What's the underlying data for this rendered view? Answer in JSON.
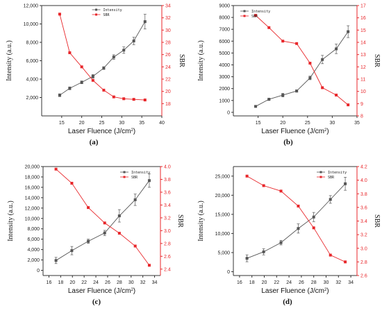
{
  "charts": [
    {
      "panel_label": "(a)",
      "chart_data": {
        "type": "line",
        "xlabel": "Laser Fluence (J/cm",
        "xlabel_sup": "2",
        "xlabel_close": ")",
        "ylabel_left": "Intensity (a.u.)",
        "ylabel_right": "SBR",
        "xlim": [
          10,
          40
        ],
        "xticks": [
          15,
          20,
          25,
          30,
          35,
          40
        ],
        "ylim_left": [
          0,
          12000
        ],
        "yticks_left": [
          2000,
          4000,
          6000,
          8000,
          10000,
          12000
        ],
        "yticklabels_left": [
          "2,000",
          "4,000",
          "6,000",
          "8,000",
          "10,000",
          "12,000"
        ],
        "ylim_right": [
          16,
          34
        ],
        "yticks_right": [
          18,
          20,
          22,
          24,
          26,
          28,
          30,
          32,
          34
        ],
        "yticklabels_right": [
          "18",
          "20",
          "22",
          "24",
          "26",
          "28",
          "30",
          "32",
          "34"
        ],
        "legend_position": "top-center",
        "series": [
          {
            "name": "Intensity",
            "axis": "left",
            "color": "#555555",
            "x": [
              14.5,
              17,
              20,
              22.8,
              25.5,
              28,
              30.5,
              33,
              35.8
            ],
            "values": [
              2250,
              3000,
              3650,
              4300,
              5200,
              6400,
              7150,
              8150,
              10250
            ],
            "errors": [
              150,
              150,
              150,
              200,
              150,
              250,
              350,
              400,
              800
            ]
          },
          {
            "name": "SBR",
            "axis": "right",
            "color": "#e8262a",
            "x": [
              14.5,
              17,
              20,
              22.8,
              25.5,
              28,
              30.5,
              33,
              35.8
            ],
            "values": [
              32.6,
              26.3,
              24.0,
              21.8,
              20.2,
              19.1,
              18.8,
              18.7,
              18.6
            ]
          }
        ]
      }
    },
    {
      "panel_label": "(b)",
      "chart_data": {
        "type": "line",
        "xlabel": "Laser Fluence (J/cm",
        "xlabel_sup": "2",
        "xlabel_close": ")",
        "ylabel_left": "Intensity (a.u.)",
        "ylabel_right": "SBR",
        "xlim": [
          10,
          35
        ],
        "xticks": [
          15,
          20,
          25,
          30,
          35
        ],
        "ylim_left": [
          -300,
          9000
        ],
        "yticks_left": [
          0,
          1000,
          2000,
          3000,
          4000,
          5000,
          6000,
          7000,
          8000,
          9000
        ],
        "yticklabels_left": [
          "0",
          "1000",
          "2000",
          "3000",
          "4000",
          "5000",
          "6000",
          "7000",
          "8000",
          "9000"
        ],
        "ylim_right": [
          8,
          17
        ],
        "yticks_right": [
          8,
          9,
          10,
          11,
          12,
          13,
          14,
          15,
          16,
          17
        ],
        "yticklabels_right": [
          "8",
          "9",
          "10",
          "11",
          "12",
          "13",
          "14",
          "15",
          "16",
          "17"
        ],
        "legend_position": "top-left",
        "series": [
          {
            "name": "Intensity",
            "axis": "left",
            "color": "#555555",
            "x": [
              14.5,
              17.2,
              20,
              22.8,
              25.5,
              28,
              30.8,
              33.2
            ],
            "values": [
              500,
              1100,
              1450,
              1800,
              2900,
              4450,
              5350,
              6800
            ],
            "errors": [
              50,
              100,
              150,
              100,
              150,
              350,
              400,
              500
            ]
          },
          {
            "name": "SBR",
            "axis": "right",
            "color": "#e8262a",
            "x": [
              14.5,
              17.2,
              20,
              22.8,
              25.5,
              28,
              30.8,
              33.2
            ],
            "values": [
              16.2,
              15.2,
              14.1,
              13.9,
              12.3,
              10.3,
              9.7,
              8.9
            ]
          }
        ]
      }
    },
    {
      "panel_label": "(c)",
      "chart_data": {
        "type": "line",
        "xlabel": "Laser Fluence (J/cm",
        "xlabel_sup": "2",
        "xlabel_close": ")",
        "ylabel_left": "Intensity (a.u.)",
        "ylabel_right": "SBR",
        "xlim": [
          15,
          35
        ],
        "xticks": [
          16,
          18,
          20,
          22,
          24,
          26,
          28,
          30,
          32,
          34
        ],
        "ylim_left": [
          -1000,
          20000
        ],
        "yticks_left": [
          0,
          2000,
          4000,
          6000,
          8000,
          10000,
          12000,
          14000,
          16000,
          18000,
          20000
        ],
        "yticklabels_left": [
          "0",
          "2,000",
          "4,000",
          "6,000",
          "8,000",
          "10,000",
          "12,000",
          "14,000",
          "16,000",
          "18,000",
          "20,000"
        ],
        "ylim_right": [
          2.3,
          4.0
        ],
        "yticks_right": [
          2.4,
          2.6,
          2.8,
          3.0,
          3.2,
          3.4,
          3.6,
          3.8,
          4.0
        ],
        "yticklabels_right": [
          "2.4",
          "2.6",
          "2.8",
          "3.0",
          "3.2",
          "3.4",
          "3.6",
          "3.8",
          "4.0"
        ],
        "legend_position": "top-right",
        "series": [
          {
            "name": "Intensity",
            "axis": "left",
            "color": "#555555",
            "x": [
              17.2,
              19.9,
              22.7,
              25.5,
              28.0,
              30.7,
              33.1
            ],
            "values": [
              1900,
              3800,
              5600,
              7200,
              10500,
              13600,
              17300
            ],
            "errors": [
              600,
              800,
              400,
              500,
              1200,
              1100,
              1300
            ]
          },
          {
            "name": "SBR",
            "axis": "right",
            "color": "#e8262a",
            "x": [
              17.2,
              19.9,
              22.7,
              25.5,
              28.0,
              30.7,
              33.1
            ],
            "values": [
              3.96,
              3.74,
              3.36,
              3.12,
              2.96,
              2.76,
              2.46
            ]
          }
        ]
      }
    },
    {
      "panel_label": "(d)",
      "chart_data": {
        "type": "line",
        "xlabel": "Laser Fluence (J/cm",
        "xlabel_sup": "2",
        "xlabel_close": ")",
        "ylabel_left": "Intensity (a.u.)",
        "ylabel_right": "SBR",
        "xlim": [
          15,
          35
        ],
        "xticks": [
          16,
          18,
          20,
          22,
          24,
          26,
          28,
          30,
          32,
          34
        ],
        "ylim_left": [
          -1000,
          27500
        ],
        "yticks_left": [
          0,
          5000,
          10000,
          15000,
          20000,
          25000
        ],
        "yticklabels_left": [
          "0",
          "5,000",
          "10,000",
          "15,000",
          "20,000",
          "25,000"
        ],
        "ylim_right": [
          2.6,
          4.2
        ],
        "yticks_right": [
          2.6,
          2.8,
          3.0,
          3.2,
          3.4,
          3.6,
          3.8,
          4.0,
          4.2
        ],
        "yticklabels_right": [
          "2.6",
          "2.8",
          "3.0",
          "3.2",
          "3.4",
          "3.6",
          "3.8",
          "4.0",
          "4.2"
        ],
        "legend_position": "top-right",
        "series": [
          {
            "name": "Intensity",
            "axis": "left",
            "color": "#555555",
            "x": [
              17.2,
              19.9,
              22.7,
              25.5,
              28.0,
              30.7,
              33.1
            ],
            "values": [
              3500,
              5200,
              7600,
              11300,
              14300,
              18900,
              23000
            ],
            "errors": [
              900,
              800,
              600,
              1200,
              1200,
              1000,
              1700
            ]
          },
          {
            "name": "SBR",
            "axis": "right",
            "color": "#e8262a",
            "x": [
              17.2,
              19.9,
              22.7,
              25.5,
              28.0,
              30.7,
              33.1
            ],
            "values": [
              4.06,
              3.92,
              3.84,
              3.62,
              3.3,
              2.9,
              2.8
            ]
          }
        ]
      }
    }
  ]
}
